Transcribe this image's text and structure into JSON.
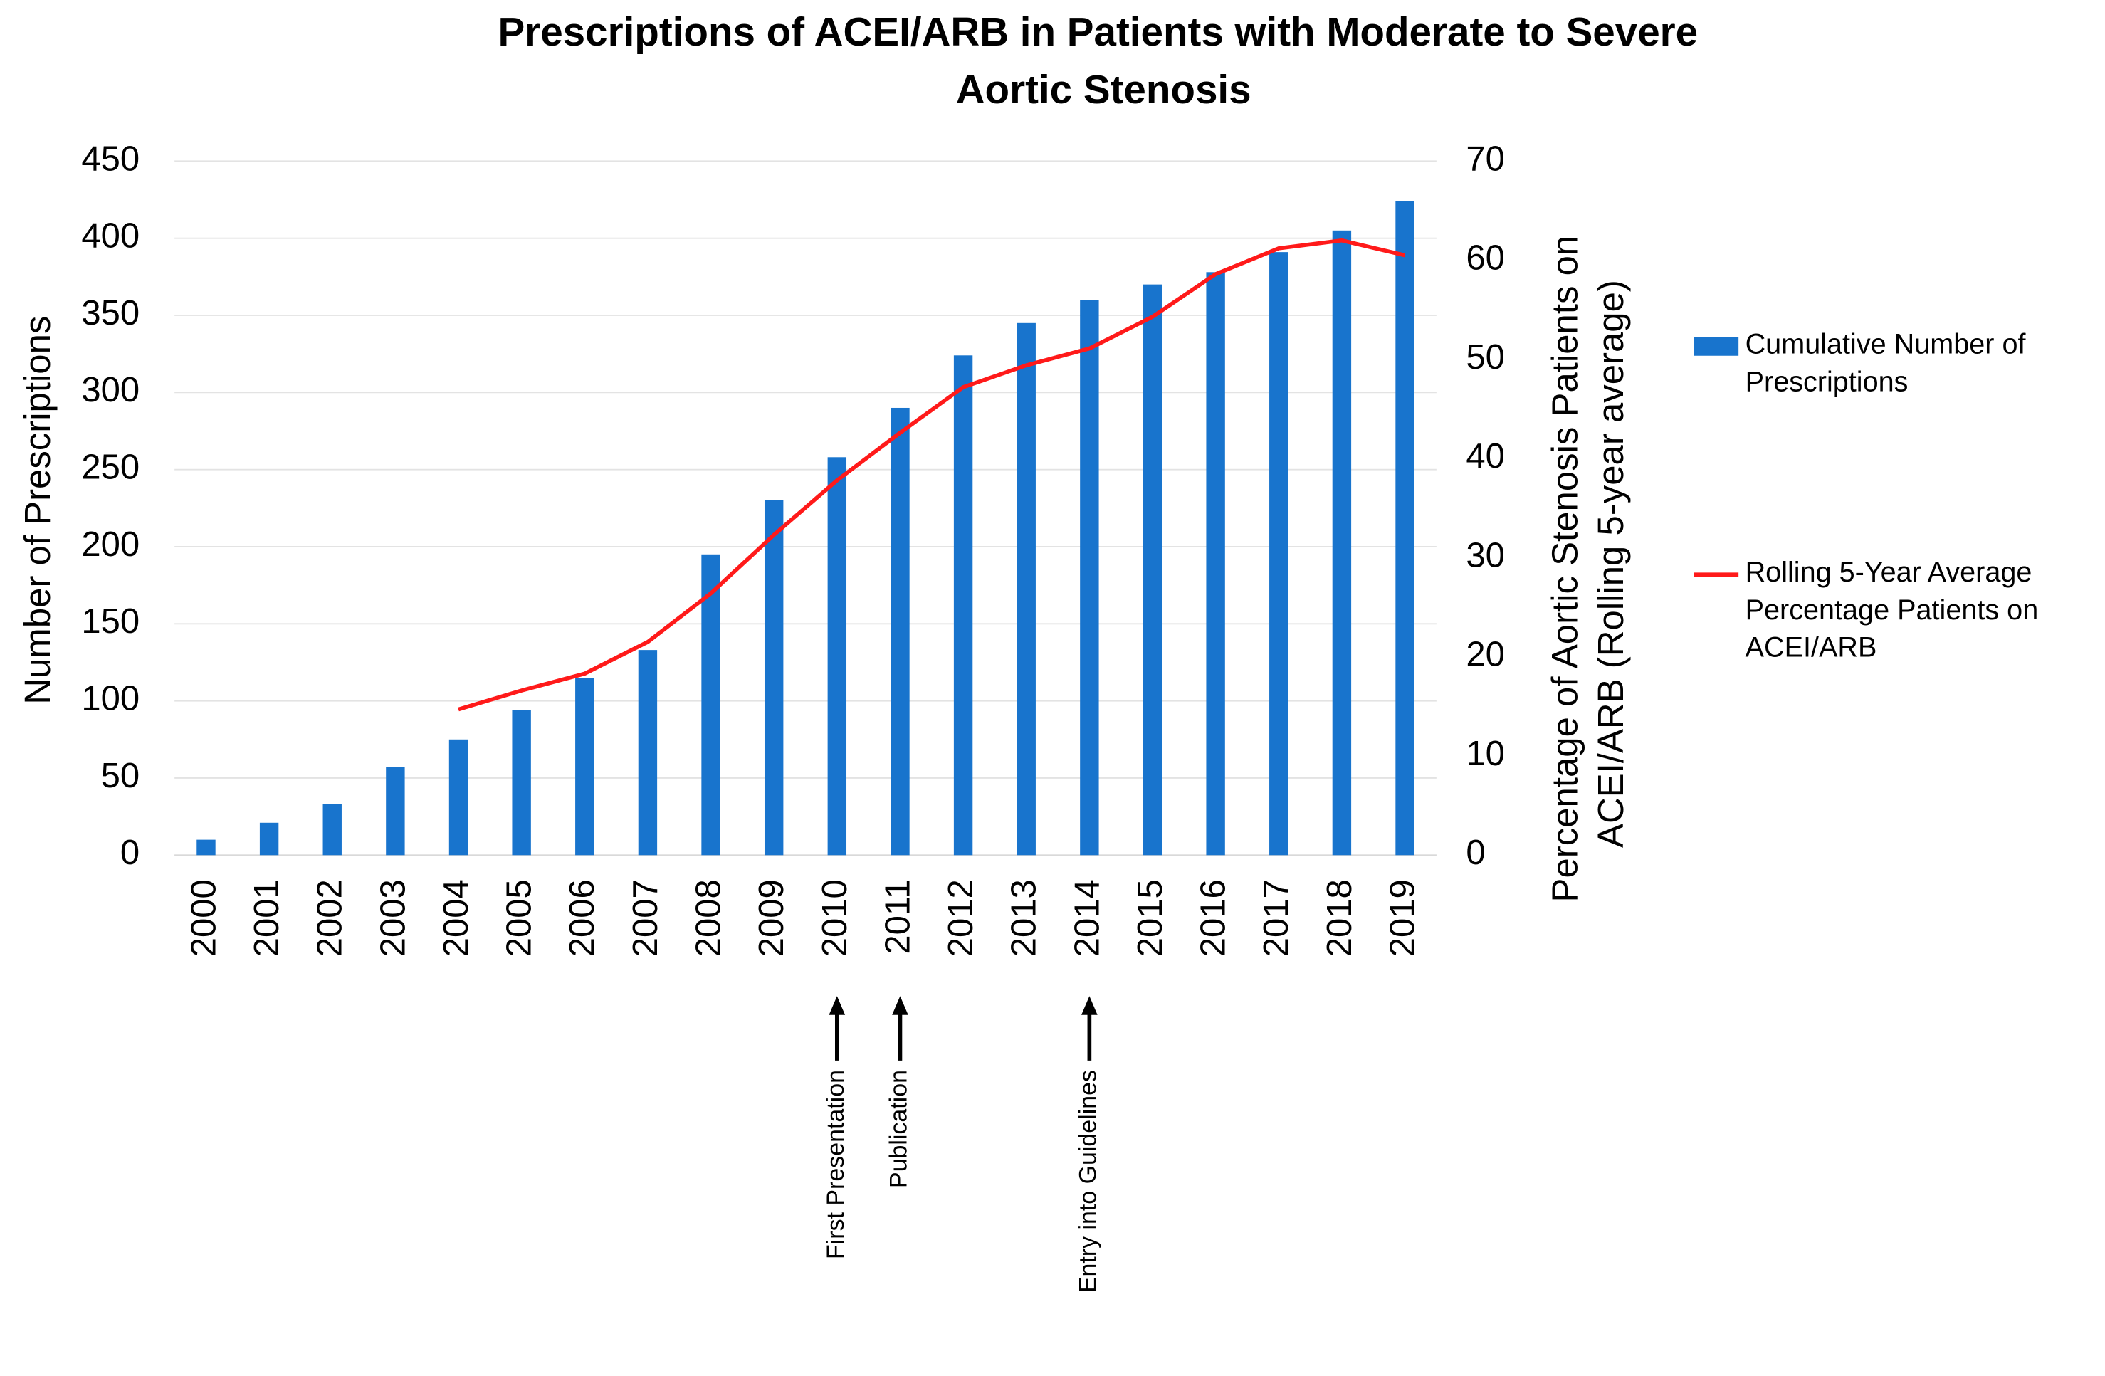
{
  "chart_data": {
    "type": "bar_line",
    "title": "Prescriptions of ACEI/ARB in Patients with Moderate to Severe Aortic Stenosis",
    "y_label": "Number of Prescriptions",
    "y2_label": "Percentage of Aortic Stenosis Patients on ACEI/ARB (Rolling 5-year average)",
    "categories": [
      "2000",
      "2001",
      "2002",
      "2003",
      "2004",
      "2005",
      "2006",
      "2007",
      "2008",
      "2009",
      "2010",
      "2011",
      "2012",
      "2013",
      "2014",
      "2015",
      "2016",
      "2017",
      "2018",
      "2019"
    ],
    "series": [
      {
        "name": "Cumulative Number of Prescriptions",
        "type": "bar",
        "color": "#1874cd",
        "values": [
          10,
          21,
          33,
          57,
          75,
          94,
          115,
          133,
          195,
          230,
          258,
          290,
          324,
          345,
          360,
          370,
          378,
          391,
          405,
          424
        ]
      },
      {
        "name": "Rolling 5-Year Average Percentage Patients on ACEI/ARB",
        "type": "line",
        "axis": "y2",
        "color": "#ff1a1a",
        "values": [
          null,
          null,
          null,
          null,
          14.7,
          16.6,
          18.3,
          21.5,
          26.4,
          32.3,
          37.8,
          42.6,
          47.2,
          49.4,
          51.1,
          54.3,
          58.6,
          61.2,
          62.0,
          60.5
        ]
      }
    ],
    "ylim": [
      0,
      450
    ],
    "yticks": [
      0,
      50,
      100,
      150,
      200,
      250,
      300,
      350,
      400,
      450
    ],
    "y2lim": [
      0,
      70
    ],
    "y2ticks": [
      0,
      10,
      20,
      30,
      40,
      50,
      60,
      70
    ],
    "grid": true,
    "legend": "right",
    "annotations": [
      {
        "text": "First Presentation",
        "category": "2010"
      },
      {
        "text": "Publication",
        "category": "2011"
      },
      {
        "text": "Entry into Guidelines",
        "category": "2014"
      }
    ]
  }
}
